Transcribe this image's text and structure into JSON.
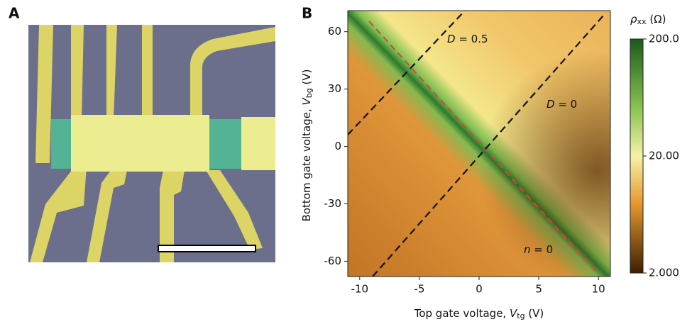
{
  "panel_a": {
    "label": "A"
  },
  "panel_b": {
    "label": "B",
    "x_label": {
      "prefix": "Top gate voltage, ",
      "var": "V",
      "sub": "tg",
      "suffix": " (V)"
    },
    "y_label": {
      "prefix": "Bottom gate voltage, ",
      "var": "V",
      "sub": "bg",
      "suffix": " (V)"
    },
    "xlim": [
      -11,
      11
    ],
    "xticks": [
      -10,
      -5,
      0,
      5,
      10
    ],
    "ylim": [
      -68,
      71
    ],
    "yticks": [
      -60,
      -30,
      0,
      30,
      60
    ],
    "annotations": [
      {
        "var": "D",
        "rest": " = 0.5"
      },
      {
        "var": "D",
        "rest": " = 0"
      },
      {
        "var": "n",
        "rest": " = 0"
      }
    ],
    "colorbar": {
      "title": {
        "var": "ρ",
        "sub": "xx",
        "suffix": " (Ω)"
      },
      "scale": "log",
      "lim": [
        2,
        200
      ],
      "ticks": [
        {
          "value": 200,
          "label": "200.0"
        },
        {
          "value": 20,
          "label": "20.00"
        },
        {
          "value": 2,
          "label": "2.000"
        }
      ]
    }
  }
}
